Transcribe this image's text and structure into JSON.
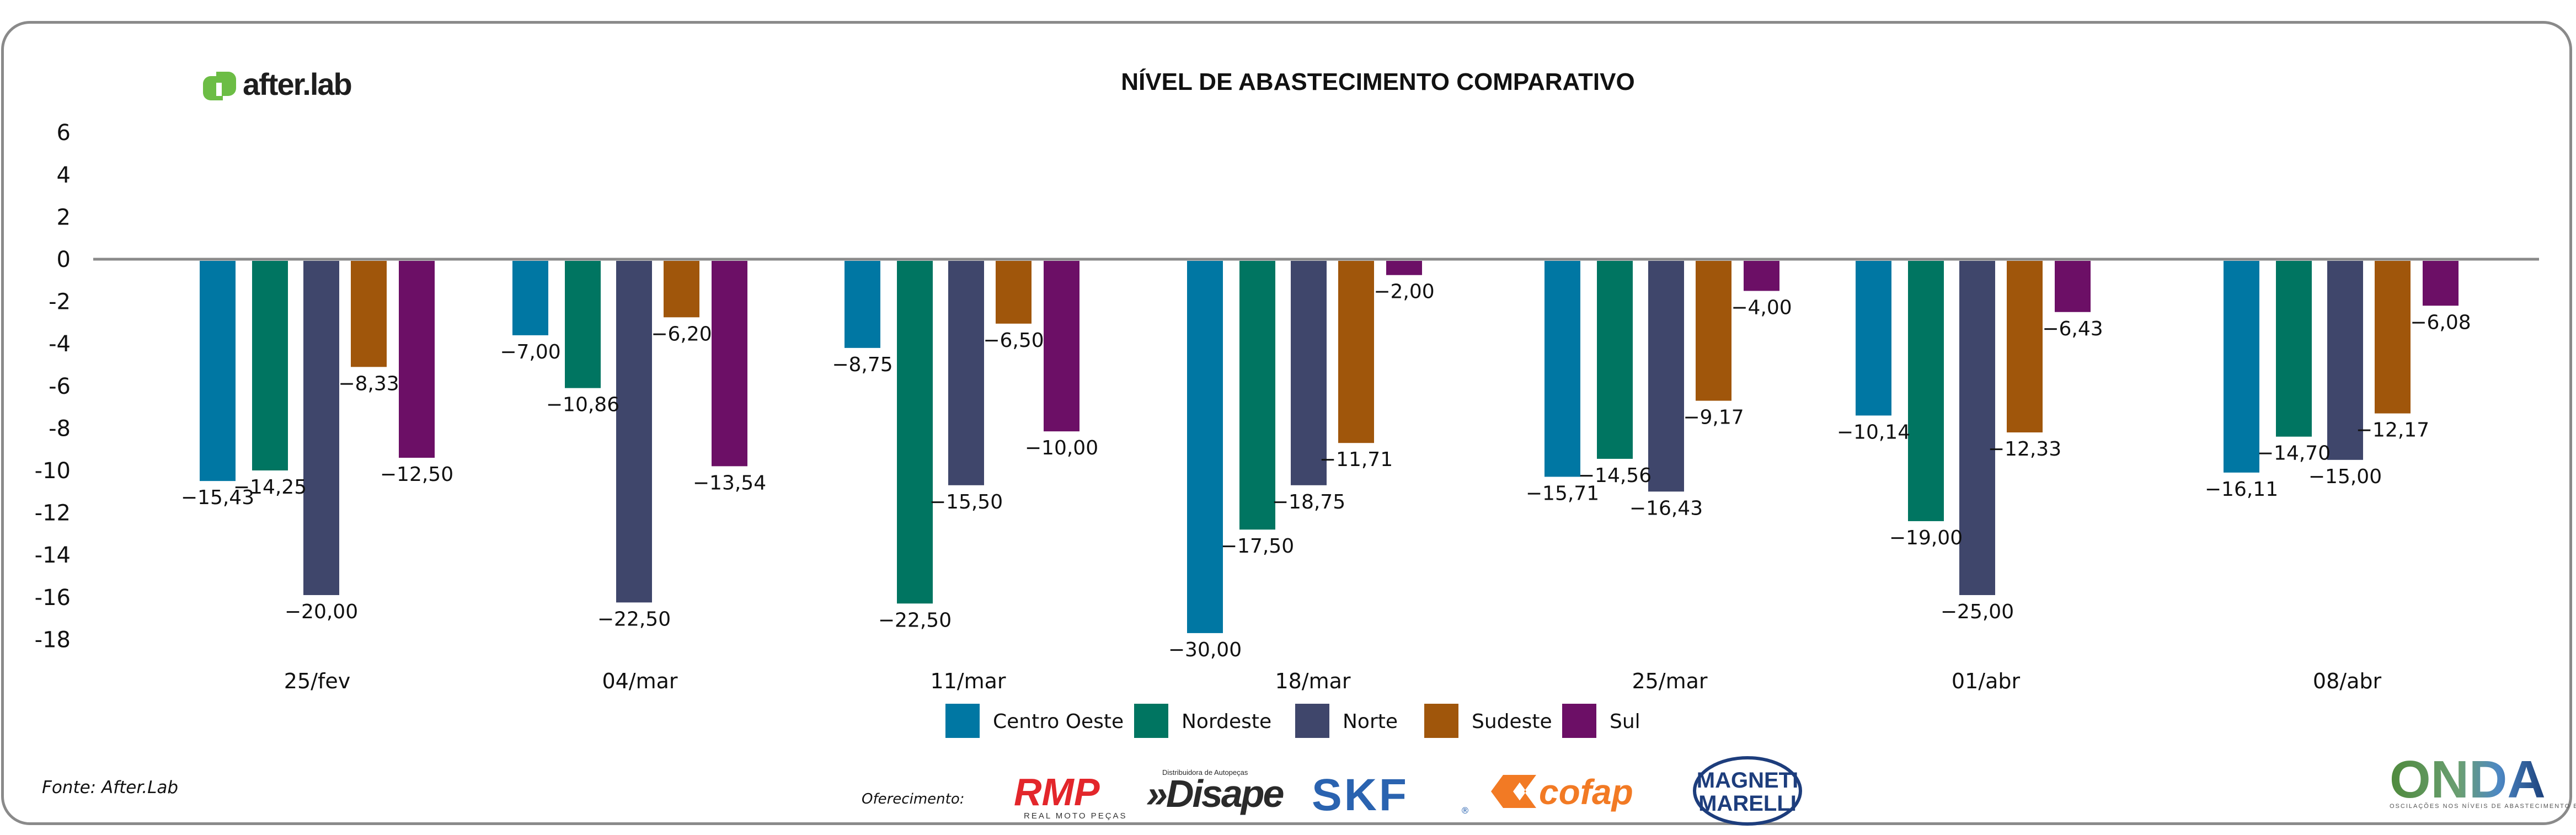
{
  "header": {
    "logo_text": "after.lab",
    "title": "NÍVEL DE ABASTECIMENTO COMPARATIVO"
  },
  "colors": {
    "Centro Oeste": "#0077a3",
    "Nordeste": "#007561",
    "Norte": "#3f466b",
    "Sudeste": "#a0560b",
    "Sul": "#6c0f66",
    "zero_line": "#8a8a8a",
    "frame": "#8a8a8a",
    "logo_green": "#6cbd45"
  },
  "chart_data": {
    "type": "bar",
    "title": "NÍVEL DE ABASTECIMENTO COMPARATIVO",
    "xlabel": "",
    "ylabel": "",
    "ylim": [
      -18,
      6
    ],
    "yticks": [
      6,
      4,
      2,
      0,
      -2,
      -4,
      -6,
      -8,
      -10,
      -12,
      -14,
      -16,
      -18
    ],
    "ytick_labels": [
      "6",
      "4",
      "2",
      "0",
      "-2",
      "-4",
      "-6",
      "-8",
      "-10",
      "-12",
      "-14",
      "-16",
      "-18"
    ],
    "grid": false,
    "legend_position": "bottom-center",
    "categories": [
      "25/fev",
      "04/mar",
      "11/mar",
      "18/mar",
      "25/mar",
      "01/abr",
      "08/abr"
    ],
    "series": [
      {
        "name": "Centro Oeste",
        "values": [
          -15.43,
          -7.0,
          -8.75,
          -30.0,
          -15.71,
          -10.14,
          -16.11
        ],
        "labels": [
          "-15,43",
          "-7,00",
          "-8,75",
          "-30,00",
          "-15,71",
          "-10,14",
          "-16,11"
        ],
        "plotted_axis_values": [
          -10.5,
          -3.6,
          -4.2,
          -17.7,
          -10.3,
          -7.4,
          -10.1
        ]
      },
      {
        "name": "Nordeste",
        "values": [
          -14.25,
          -10.86,
          -22.5,
          -17.5,
          -14.56,
          -19.0,
          -14.7
        ],
        "labels": [
          "-14,25",
          "-10,86",
          "-22,50",
          "-17,50",
          "-14,56",
          "-19,00",
          "-14,70"
        ],
        "plotted_axis_values": [
          -10.0,
          -6.1,
          -16.3,
          -12.8,
          -9.45,
          -12.4,
          -8.4
        ]
      },
      {
        "name": "Norte",
        "values": [
          -20.0,
          -22.5,
          -15.5,
          -18.75,
          -16.43,
          -25.0,
          -15.0
        ],
        "labels": [
          "-20,00",
          "-22,50",
          "-15,50",
          "-18,75",
          "-16,43",
          "-25,00",
          "-15,00"
        ],
        "plotted_axis_values": [
          -15.9,
          -16.25,
          -10.7,
          -10.7,
          -11.0,
          -15.9,
          -9.5
        ]
      },
      {
        "name": "Sudeste",
        "values": [
          -8.33,
          -6.2,
          -6.5,
          -11.71,
          -9.17,
          -12.33,
          -12.17
        ],
        "labels": [
          "-8,33",
          "-6,20",
          "-6,50",
          "-11,71",
          "-9,17",
          "-12,33",
          "-12,17"
        ],
        "plotted_axis_values": [
          -5.1,
          -2.75,
          -3.05,
          -8.7,
          -6.7,
          -8.2,
          -7.3
        ]
      },
      {
        "name": "Sul",
        "values": [
          -12.5,
          -13.54,
          -10.0,
          -2.0,
          -4.0,
          -6.43,
          -6.08
        ],
        "labels": [
          "-12,50",
          "-13,54",
          "-10,00",
          "-2,00",
          "-4,00",
          "-6,43",
          "-6,08"
        ],
        "plotted_axis_values": [
          -9.4,
          -9.8,
          -8.15,
          -0.75,
          -1.5,
          -2.5,
          -2.2
        ]
      }
    ]
  },
  "legend": {
    "items": [
      "Centro Oeste",
      "Nordeste",
      "Norte",
      "Sudeste",
      "Sul"
    ]
  },
  "footer": {
    "source": "Fonte: After.Lab",
    "offer_label": "Oferecimento:",
    "sponsors": {
      "rmp": "RMP",
      "rmp_sub": "REAL MOTO PEÇAS",
      "disape": "»Disape",
      "disape_sub": "Distribuidora de Autopeças",
      "skf": "SKF",
      "skf_mark": "®",
      "cofap": "cofap",
      "magneti_line1": "MAGNETI",
      "magneti_line2": "MARELLI"
    },
    "onda": {
      "title": "ONDA",
      "subtitle": "OSCILAÇÕES NOS NÍVEIS DE ABASTECIMENTO E PREÇOS"
    }
  }
}
